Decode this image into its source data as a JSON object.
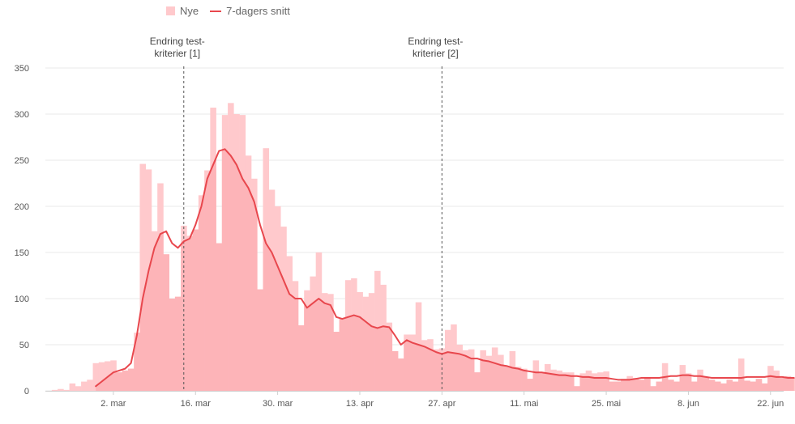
{
  "legend": {
    "bars_label": "Nye",
    "line_label": "7-dagers snitt"
  },
  "colors": {
    "bars": "#ffc9cc",
    "bars_overlap": "#fdb4b8",
    "line": "#e8474d",
    "grid": "#e9e9e9",
    "annotation_line": "#555555"
  },
  "chart_data": {
    "type": "bar",
    "title": "",
    "xlabel": "",
    "ylabel": "",
    "ylim": [
      0,
      350
    ],
    "yticks": [
      0,
      50,
      100,
      150,
      200,
      250,
      300,
      350
    ],
    "grid": true,
    "legend_position": "top-left",
    "start_date": "2020-02-21",
    "end_date": "2020-06-27",
    "xtick_labels": [
      {
        "date": "2020-03-02",
        "label": "2. mar"
      },
      {
        "date": "2020-03-16",
        "label": "16. mar"
      },
      {
        "date": "2020-03-30",
        "label": "30. mar"
      },
      {
        "date": "2020-04-13",
        "label": "13. apr"
      },
      {
        "date": "2020-04-27",
        "label": "27. apr"
      },
      {
        "date": "2020-05-11",
        "label": "11. mai"
      },
      {
        "date": "2020-05-25",
        "label": "25. mai"
      },
      {
        "date": "2020-06-08",
        "label": "8. jun"
      },
      {
        "date": "2020-06-22",
        "label": "22. jun"
      }
    ],
    "annotations": [
      {
        "date": "2020-03-14",
        "lines": [
          "Endring test-",
          "kriterier [1]"
        ]
      },
      {
        "date": "2020-04-27",
        "lines": [
          "Endring test-",
          "kriterier [2]"
        ]
      }
    ],
    "series": [
      {
        "name": "Nye",
        "type": "bar",
        "values": [
          1,
          2,
          1,
          8,
          5,
          10,
          12,
          30,
          31,
          32,
          33,
          20,
          22,
          24,
          63,
          246,
          240,
          173,
          225,
          148,
          100,
          102,
          179,
          168,
          175,
          212,
          239,
          307,
          160,
          299,
          312,
          300,
          299,
          255,
          230,
          110,
          263,
          218,
          200,
          178,
          146,
          119,
          71,
          109,
          124,
          150,
          106,
          105,
          64,
          79,
          120,
          122,
          107,
          102,
          106,
          130,
          115,
          74,
          43,
          35,
          61,
          61,
          96,
          55,
          56,
          45,
          46,
          66,
          72,
          50,
          44,
          45,
          20,
          44,
          38,
          47,
          39,
          27,
          43,
          26,
          24,
          13,
          33,
          19,
          29,
          23,
          22,
          20,
          20,
          5,
          19,
          22,
          19,
          20,
          21,
          10,
          10,
          13,
          16,
          14,
          12,
          15,
          5,
          10,
          30,
          12,
          10,
          28,
          19,
          10,
          23,
          15,
          12,
          10,
          8,
          12,
          10,
          35,
          11,
          10,
          13,
          8,
          27,
          22,
          14,
          16,
          14
        ]
      },
      {
        "name": "7-dagers snitt",
        "type": "line",
        "values": [
          null,
          null,
          null,
          null,
          null,
          null,
          null,
          5,
          10,
          15,
          20,
          22,
          24,
          30,
          60,
          100,
          130,
          155,
          170,
          173,
          160,
          155,
          162,
          165,
          180,
          200,
          230,
          245,
          260,
          262,
          255,
          245,
          230,
          220,
          205,
          180,
          160,
          150,
          135,
          120,
          105,
          100,
          100,
          90,
          95,
          100,
          95,
          93,
          80,
          78,
          80,
          82,
          80,
          75,
          70,
          68,
          70,
          69,
          60,
          50,
          55,
          52,
          50,
          48,
          45,
          42,
          40,
          42,
          41,
          40,
          38,
          35,
          35,
          33,
          32,
          30,
          28,
          27,
          25,
          24,
          22,
          21,
          20,
          20,
          19,
          18,
          17,
          17,
          16,
          16,
          15,
          15,
          14,
          14,
          14,
          13,
          12,
          12,
          12,
          13,
          14,
          14,
          14,
          14,
          15,
          16,
          16,
          17,
          17,
          16,
          16,
          15,
          14,
          14,
          14,
          14,
          14,
          14,
          15,
          15,
          15,
          15,
          16,
          15,
          15,
          14,
          14
        ]
      }
    ]
  }
}
